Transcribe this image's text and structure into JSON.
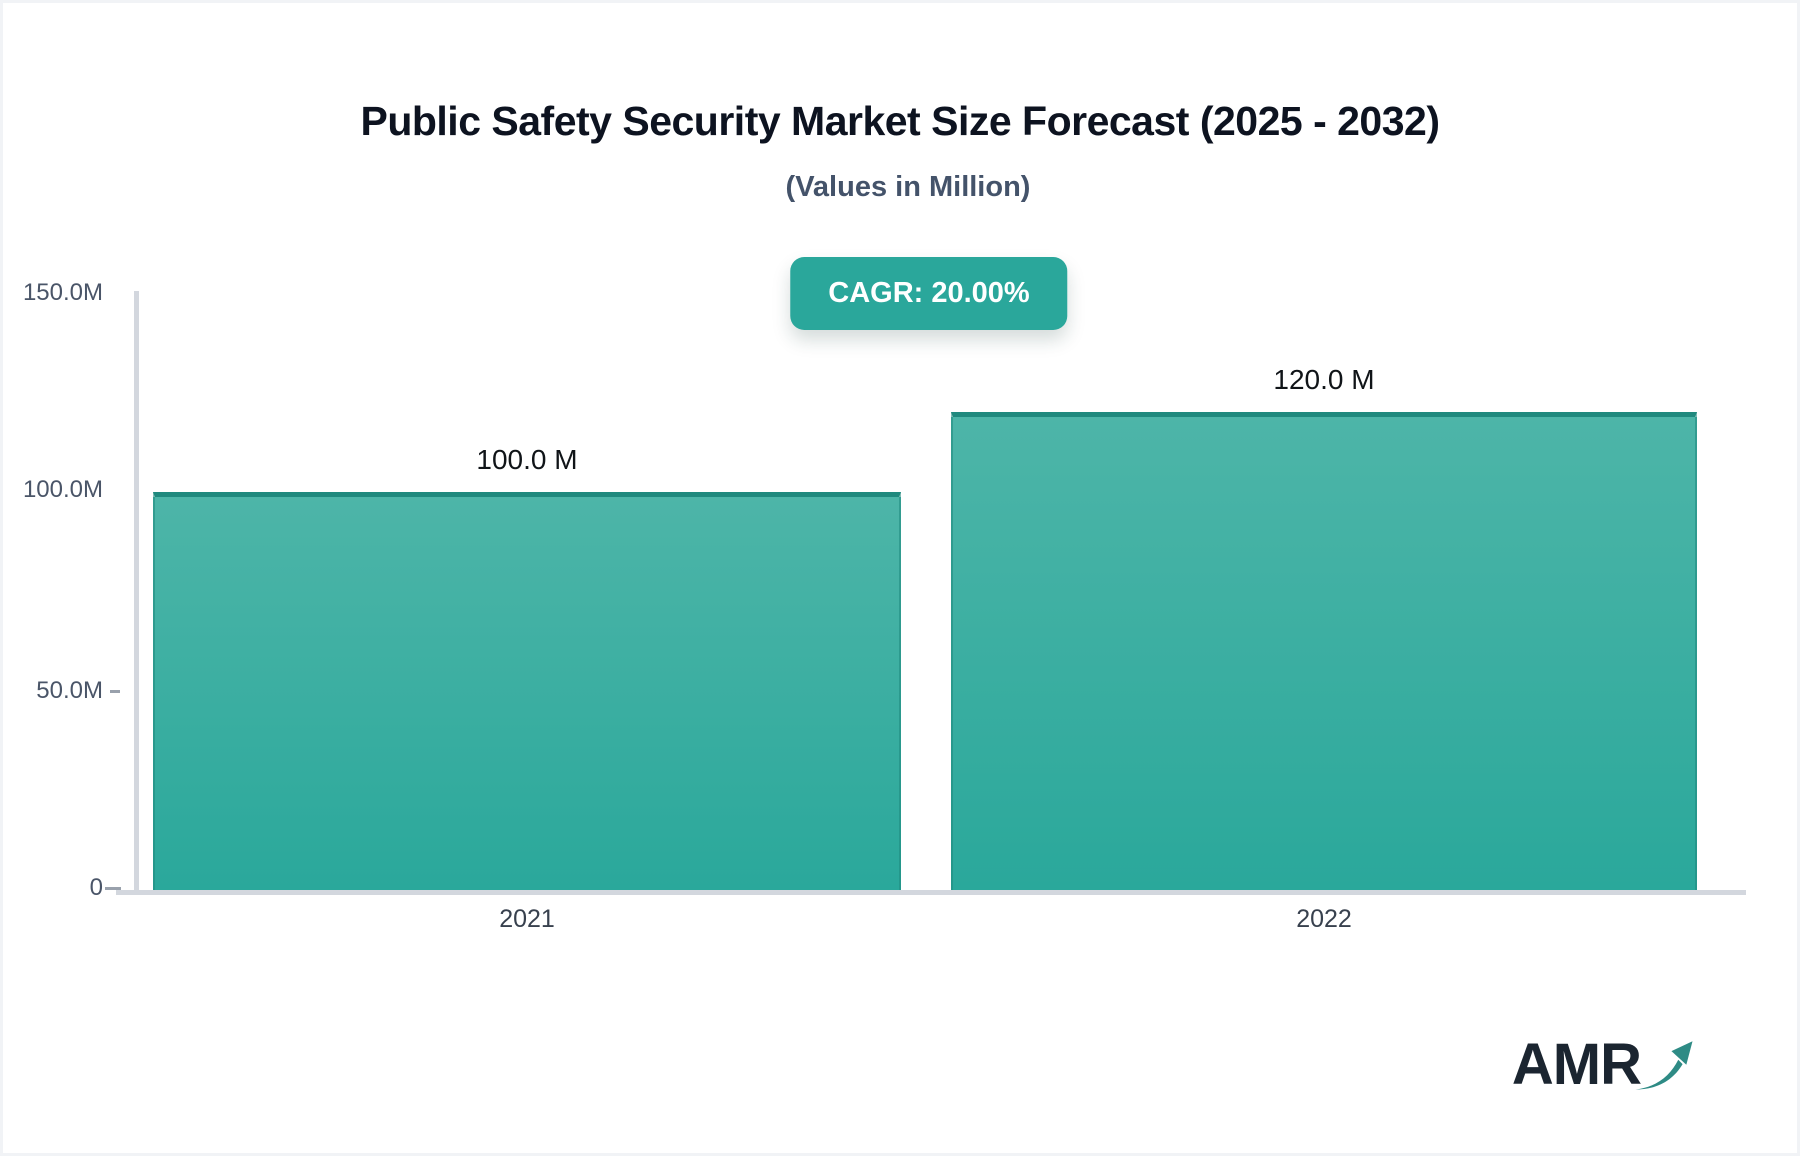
{
  "header": {
    "title": "Public Safety Security Market Size Forecast (2025 - 2032)",
    "subtitle": "(Values in Million)",
    "cagr_badge": "CAGR: 20.00%"
  },
  "chart_data": {
    "type": "bar",
    "title": "Public Safety Security Market Size Forecast (2025 - 2032)",
    "subtitle": "(Values in Million)",
    "unit": "Million",
    "cagr_percent": "20.00%",
    "categories": [
      "2021",
      "2022"
    ],
    "values": [
      100.0,
      120.0
    ],
    "value_labels": [
      "100.0 M",
      "120.0 M"
    ],
    "y_tick_labels": [
      "150.0M",
      "100.0M",
      "50.0M",
      "0"
    ],
    "ylim": [
      0,
      150
    ],
    "grid": false,
    "legend": "none",
    "bar_gradient_top": "#4db5a8",
    "bar_gradient_bottom": "#2aa89b",
    "bar_top_border": "#20897e"
  },
  "colors": {
    "accent_teal": "#2aa79b",
    "axis_line": "#d3d7de",
    "tick": "#99a1ac",
    "y_label": "#4a5568",
    "x_label": "#38414e",
    "title": "#0d1320",
    "subtitle": "#44536a",
    "logo_dark": "#1b2530",
    "logo_arrow_teal": "#2e8b85"
  },
  "footer": {
    "logo_text": "AMR"
  }
}
